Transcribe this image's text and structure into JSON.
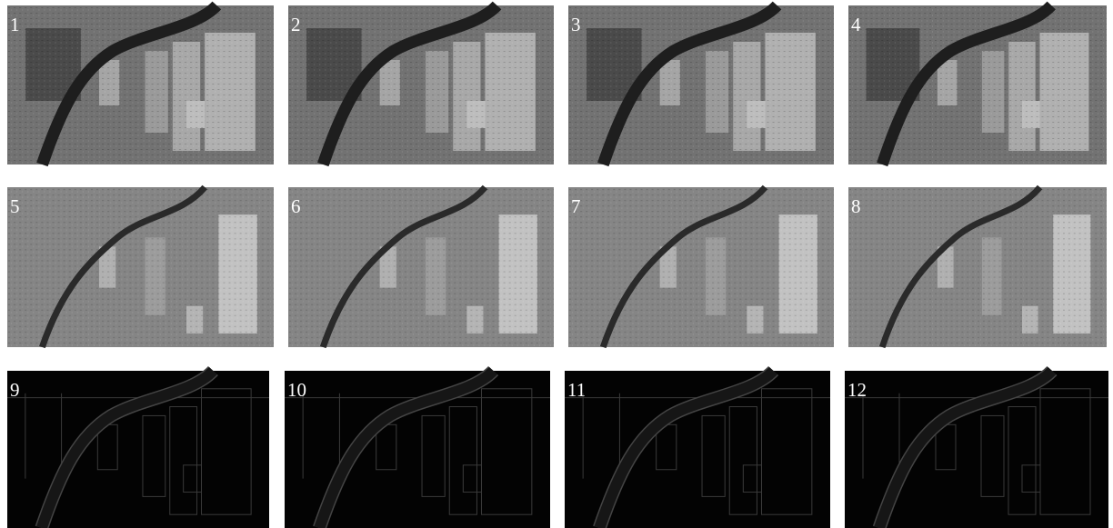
{
  "panels": [
    {
      "label": "1"
    },
    {
      "label": "2"
    },
    {
      "label": "3"
    },
    {
      "label": "4"
    },
    {
      "label": "5"
    },
    {
      "label": "6"
    },
    {
      "label": "7"
    },
    {
      "label": "8"
    },
    {
      "label": "9"
    },
    {
      "label": "10"
    },
    {
      "label": "11"
    },
    {
      "label": "12"
    }
  ]
}
